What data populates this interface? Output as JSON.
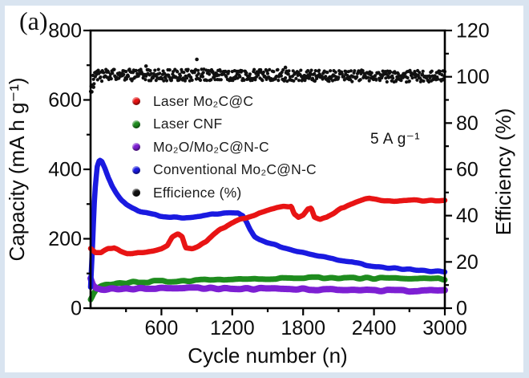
{
  "panel_label": "(a)",
  "annotation": "5 A g⁻¹",
  "colors": {
    "red": "#e81414",
    "green": "#1e8c1e",
    "purple": "#7d1fd3",
    "blue": "#1a1ae0",
    "black": "#111111",
    "frame": "#000000",
    "border_tint": "#d9e4f0"
  },
  "legend": [
    {
      "label": "Laser Mo₂C@C",
      "color": "#e81414"
    },
    {
      "label": "Laser CNF",
      "color": "#1e8c1e"
    },
    {
      "label": "Mo₂O/Mo₂C@N-C",
      "color": "#7d1fd3"
    },
    {
      "label": "Conventional Mo₂C@N-C",
      "color": "#1a1ae0"
    },
    {
      "label": "Efficience (%)",
      "color": "#111111"
    }
  ],
  "chart_data": {
    "type": "scatter",
    "xlabel": "Cycle number (n)",
    "ylabel_left": "Capacity (mA h g⁻¹)",
    "ylabel_right": "Efficiency (%)",
    "xlim": [
      0,
      3000
    ],
    "ylim_left": [
      0,
      800
    ],
    "ylim_right": [
      0,
      120
    ],
    "x_major_ticks": [
      600,
      1200,
      1800,
      2400,
      3000
    ],
    "x_minor_ticks": [
      300,
      900,
      1500,
      2100,
      2700
    ],
    "yleft_major_ticks": [
      0,
      200,
      400,
      600,
      800
    ],
    "yleft_minor_ticks": [
      100,
      300,
      500,
      700
    ],
    "yright_major_ticks": [
      0,
      20,
      40,
      60,
      80,
      100,
      120
    ],
    "yright_minor_ticks": [
      10,
      30,
      50,
      70,
      90,
      110
    ],
    "grid": false,
    "legend_position": "upper-left-inside",
    "series": [
      {
        "name": "Laser CNF",
        "color": "#1e8c1e",
        "axis": "left",
        "render": "line",
        "width": 7,
        "noise": 2.6,
        "points": [
          [
            0,
            26
          ],
          [
            25,
            42
          ],
          [
            55,
            56
          ],
          [
            90,
            63
          ],
          [
            130,
            67
          ],
          [
            180,
            70
          ],
          [
            250,
            72
          ],
          [
            350,
            74
          ],
          [
            450,
            76
          ],
          [
            550,
            77
          ],
          [
            700,
            78
          ],
          [
            850,
            80
          ],
          [
            1000,
            81
          ],
          [
            1200,
            83
          ],
          [
            1400,
            85
          ],
          [
            1600,
            86
          ],
          [
            1800,
            87
          ],
          [
            2000,
            88
          ],
          [
            2200,
            87
          ],
          [
            2400,
            86
          ],
          [
            2600,
            85
          ],
          [
            2800,
            84
          ],
          [
            3000,
            84
          ]
        ]
      },
      {
        "name": "Mo₂O/Mo₂C@N-C",
        "color": "#7d1fd3",
        "axis": "left",
        "render": "line",
        "width": 8,
        "noise": 2.2,
        "points": [
          [
            0,
            88
          ],
          [
            20,
            68
          ],
          [
            50,
            58
          ],
          [
            90,
            55
          ],
          [
            150,
            55
          ],
          [
            250,
            56
          ],
          [
            350,
            56
          ],
          [
            500,
            57
          ],
          [
            700,
            57
          ],
          [
            900,
            58
          ],
          [
            1100,
            57
          ],
          [
            1300,
            56
          ],
          [
            1500,
            56
          ],
          [
            1700,
            55
          ],
          [
            1900,
            54
          ],
          [
            2100,
            53
          ],
          [
            2300,
            52
          ],
          [
            2500,
            51
          ],
          [
            2700,
            50
          ],
          [
            3000,
            50
          ]
        ]
      },
      {
        "name": "Conventional Mo₂C@N-C",
        "color": "#1a1ae0",
        "axis": "left",
        "render": "line",
        "width": 6.5,
        "noise": 2.0,
        "points": [
          [
            0,
            60
          ],
          [
            15,
            170
          ],
          [
            35,
            330
          ],
          [
            55,
            408
          ],
          [
            75,
            428
          ],
          [
            95,
            424
          ],
          [
            120,
            405
          ],
          [
            150,
            378
          ],
          [
            185,
            352
          ],
          [
            220,
            332
          ],
          [
            260,
            313
          ],
          [
            300,
            298
          ],
          [
            350,
            288
          ],
          [
            400,
            281
          ],
          [
            460,
            275
          ],
          [
            520,
            270
          ],
          [
            580,
            266
          ],
          [
            650,
            263
          ],
          [
            720,
            261
          ],
          [
            790,
            261
          ],
          [
            860,
            262
          ],
          [
            930,
            264
          ],
          [
            1000,
            268
          ],
          [
            1070,
            272
          ],
          [
            1130,
            274
          ],
          [
            1190,
            276
          ],
          [
            1250,
            274
          ],
          [
            1290,
            265
          ],
          [
            1320,
            247
          ],
          [
            1350,
            226
          ],
          [
            1390,
            205
          ],
          [
            1430,
            196
          ],
          [
            1480,
            190
          ],
          [
            1540,
            184
          ],
          [
            1620,
            177
          ],
          [
            1700,
            169
          ],
          [
            1780,
            162
          ],
          [
            1860,
            156
          ],
          [
            1940,
            150
          ],
          [
            2020,
            144
          ],
          [
            2100,
            139
          ],
          [
            2180,
            134
          ],
          [
            2260,
            129
          ],
          [
            2340,
            124
          ],
          [
            2420,
            120
          ],
          [
            2500,
            117
          ],
          [
            2580,
            114
          ],
          [
            2660,
            112
          ],
          [
            2740,
            110
          ],
          [
            2820,
            108
          ],
          [
            2900,
            107
          ],
          [
            3000,
            106
          ]
        ]
      },
      {
        "name": "Laser Mo₂C@C",
        "color": "#e81414",
        "axis": "left",
        "render": "line",
        "width": 6.5,
        "noise": 2.0,
        "points": [
          [
            0,
            172
          ],
          [
            40,
            161
          ],
          [
            90,
            160
          ],
          [
            150,
            172
          ],
          [
            200,
            174
          ],
          [
            250,
            163
          ],
          [
            310,
            157
          ],
          [
            370,
            160
          ],
          [
            430,
            158
          ],
          [
            490,
            162
          ],
          [
            550,
            166
          ],
          [
            600,
            170
          ],
          [
            650,
            179
          ],
          [
            690,
            203
          ],
          [
            740,
            213
          ],
          [
            775,
            206
          ],
          [
            805,
            174
          ],
          [
            860,
            172
          ],
          [
            920,
            181
          ],
          [
            980,
            191
          ],
          [
            1040,
            210
          ],
          [
            1100,
            227
          ],
          [
            1160,
            239
          ],
          [
            1220,
            249
          ],
          [
            1280,
            257
          ],
          [
            1340,
            264
          ],
          [
            1400,
            270
          ],
          [
            1460,
            276
          ],
          [
            1520,
            283
          ],
          [
            1580,
            289
          ],
          [
            1640,
            293
          ],
          [
            1700,
            294
          ],
          [
            1725,
            270
          ],
          [
            1760,
            261
          ],
          [
            1800,
            269
          ],
          [
            1840,
            286
          ],
          [
            1868,
            289
          ],
          [
            1895,
            264
          ],
          [
            1945,
            257
          ],
          [
            2000,
            262
          ],
          [
            2060,
            272
          ],
          [
            2120,
            287
          ],
          [
            2180,
            298
          ],
          [
            2240,
            306
          ],
          [
            2300,
            312
          ],
          [
            2360,
            315
          ],
          [
            2420,
            313
          ],
          [
            2490,
            309
          ],
          [
            2570,
            308
          ],
          [
            2650,
            310
          ],
          [
            2730,
            311
          ],
          [
            2810,
            309
          ],
          [
            2890,
            310
          ],
          [
            3000,
            312
          ]
        ]
      },
      {
        "name": "Efficience (%)",
        "color": "#111111",
        "axis": "right",
        "render": "dots",
        "dot_r": 2.1,
        "noise": 2.5,
        "points": [
          [
            0,
            95
          ],
          [
            15,
            98
          ],
          [
            40,
            100
          ],
          [
            80,
            100.6
          ],
          [
            200,
            100.8
          ],
          [
            600,
            100.7
          ],
          [
            1000,
            100.8
          ],
          [
            1500,
            100.6
          ],
          [
            2000,
            100.5
          ],
          [
            2500,
            100.3
          ],
          [
            3000,
            100.1
          ]
        ],
        "outliers": [
          [
            900,
            107.5
          ],
          [
            470,
            104.6
          ],
          [
            10,
            93.5
          ],
          [
            25,
            95.5
          ],
          [
            1650,
            104.0
          ]
        ]
      }
    ]
  }
}
